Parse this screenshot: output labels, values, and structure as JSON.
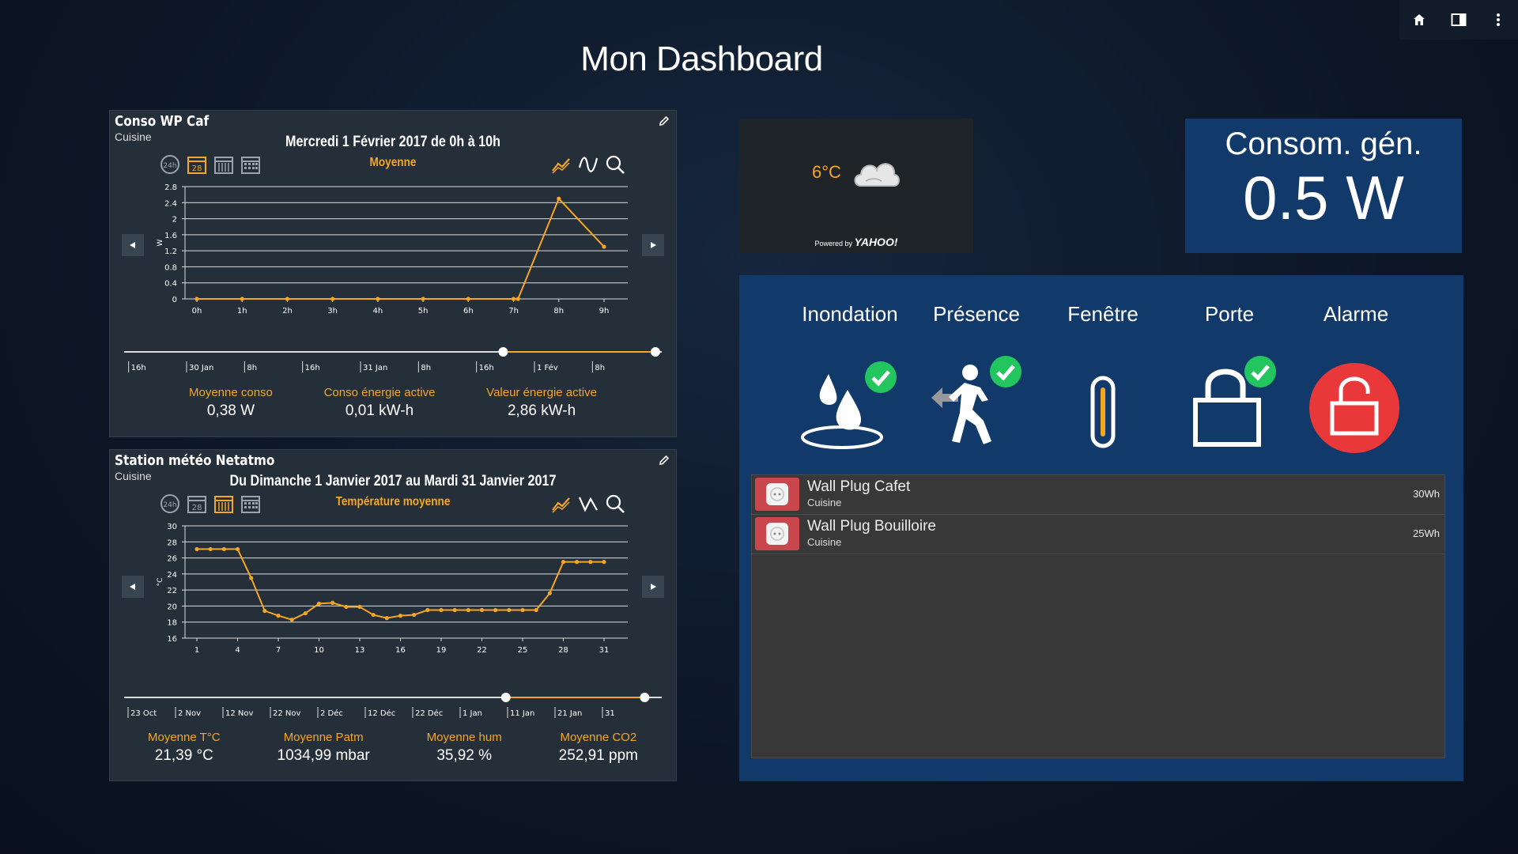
{
  "page": {
    "title": "Mon Dashboard"
  },
  "topbar": {
    "icons": [
      "home-icon",
      "sidebar-panel-icon",
      "more-vertical-icon"
    ]
  },
  "colors": {
    "accent": "#f5a623",
    "panel_bg": "#252f3a",
    "blue_tile": "#113a6b",
    "alarm_red": "#e8383a",
    "check_green": "#22c55e"
  },
  "conso_panel": {
    "title": "Conso WP Caf",
    "room": "Cuisine",
    "period": "Mercredi 1 Février 2017 de 0h à 10h",
    "metric": "Moyenne",
    "calendar_day": "28",
    "timeline": [
      "16h",
      "30 Jan",
      "8h",
      "16h",
      "31 Jan",
      "8h",
      "16h",
      "1 Fév",
      "8h"
    ],
    "stats": [
      {
        "label": "Moyenne conso",
        "value": "0,38 W"
      },
      {
        "label": "Conso énergie active",
        "value": "0,01 kW-h"
      },
      {
        "label": "Valeur énergie active",
        "value": "2,86 kW-h"
      }
    ]
  },
  "meteo_panel": {
    "title": "Station météo Netatmo",
    "room": "Cuisine",
    "period": "Du Dimanche 1 Janvier 2017 au Mardi 31 Janvier 2017",
    "metric": "Température moyenne",
    "calendar_day": "28",
    "timeline": [
      "23 Oct",
      "2 Nov",
      "12 Nov",
      "22 Nov",
      "2 Déc",
      "12 Déc",
      "22 Déc",
      "1 Jan",
      "11 Jan",
      "21 Jan",
      "31"
    ],
    "stats": [
      {
        "label": "Moyenne T°C",
        "value": "21,39 °C"
      },
      {
        "label": "Moyenne Patm",
        "value": "1034,99 mbar"
      },
      {
        "label": "Moyenne hum",
        "value": "35,92 %"
      },
      {
        "label": "Moyenne CO2",
        "value": "252,91 ppm"
      }
    ]
  },
  "chart_data": [
    {
      "type": "line",
      "ylabel": "W",
      "ylim": [
        0,
        2.8
      ],
      "yticks": [
        "0",
        "0.4",
        "0.8",
        "1.2",
        "1.6",
        "2",
        "2.4",
        "2.8"
      ],
      "categories": [
        "0h",
        "1h",
        "2h",
        "3h",
        "4h",
        "5h",
        "6h",
        "7h",
        "8h",
        "9h"
      ],
      "x": [
        0,
        1,
        2,
        3,
        4,
        5,
        6,
        7,
        7.1,
        8,
        9
      ],
      "values": [
        0,
        0,
        0,
        0,
        0,
        0,
        0,
        0,
        0,
        2.5,
        1.3
      ],
      "grid": true
    },
    {
      "type": "line",
      "ylabel": "°C",
      "ylim": [
        16,
        30
      ],
      "yticks": [
        "16",
        "18",
        "20",
        "22",
        "24",
        "26",
        "28",
        "30"
      ],
      "categories": [
        "1",
        "4",
        "7",
        "10",
        "13",
        "16",
        "19",
        "22",
        "25",
        "28",
        "31"
      ],
      "x": [
        1,
        2,
        3,
        4,
        5,
        6,
        7,
        8,
        9,
        10,
        11,
        12,
        13,
        14,
        15,
        16,
        17,
        18,
        19,
        20,
        21,
        22,
        23,
        24,
        25,
        26,
        27,
        28,
        29,
        30,
        31
      ],
      "values": [
        27.1,
        27.1,
        27.1,
        27.1,
        23.5,
        19.4,
        18.8,
        18.3,
        19.1,
        20.3,
        20.4,
        19.9,
        19.9,
        18.9,
        18.5,
        18.8,
        18.9,
        19.5,
        19.5,
        19.5,
        19.5,
        19.5,
        19.5,
        19.5,
        19.5,
        19.5,
        21.6,
        25.5,
        25.5,
        25.5,
        25.5
      ],
      "grid": true
    }
  ],
  "weather": {
    "temp": "6°C",
    "icon": "cloud-icon",
    "powered_prefix": "Powered by",
    "powered_brand": "YAHOO!"
  },
  "consom": {
    "label": "Consom. gén.",
    "value": "0.5 W"
  },
  "security": [
    {
      "label": "Inondation",
      "icon": "water-drops-icon",
      "ok": true
    },
    {
      "label": "Présence",
      "icon": "person-running-icon",
      "ok": true
    },
    {
      "label": "Fenêtre",
      "icon": "window-sensor-icon",
      "ok": false
    },
    {
      "label": "Porte",
      "icon": "padlock-icon",
      "ok": true
    },
    {
      "label": "Alarme",
      "icon": "unlocked-alarm-icon",
      "ok": false
    }
  ],
  "plugs": [
    {
      "name": "Wall Plug Cafet",
      "room": "Cuisine",
      "value": "30Wh",
      "icon": "wall-plug-icon"
    },
    {
      "name": "Wall Plug Bouilloire",
      "room": "Cuisine",
      "value": "25Wh",
      "icon": "wall-plug-icon"
    }
  ]
}
